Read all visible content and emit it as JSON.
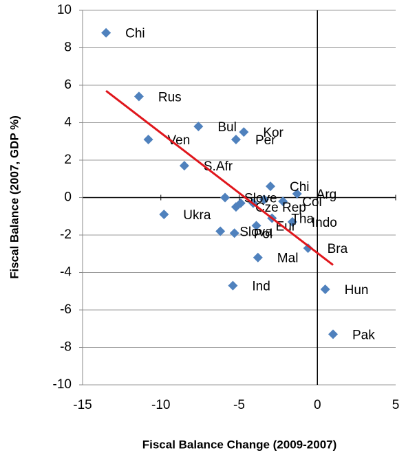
{
  "chart_data": {
    "type": "scatter",
    "x_label": "Fiscal Balance Change (2009-2007)",
    "y_label": "Fiscal Balance (2007, GDP %)",
    "color": "#4f81bd",
    "grid": true,
    "trend_color": "#e0161c",
    "xlim": [
      -15,
      5
    ],
    "xticks": [
      -15,
      -10,
      -5,
      0,
      5
    ],
    "ylim": [
      -10,
      10
    ],
    "yticks": [
      -10,
      -8,
      -6,
      -4,
      -2,
      0,
      2,
      4,
      6,
      8,
      10
    ],
    "labels": [
      "Chi",
      "Rus",
      "Ven",
      "Bul",
      "Kor",
      "Per",
      "S.Afr",
      "Ukra",
      "Ind",
      "Mal",
      "Slova",
      "Pol",
      "Hun",
      "Pak",
      "Bra",
      "Indo",
      "Slove",
      "Chi",
      "Arg",
      "Col",
      "Cze Rep",
      "Tha",
      "Eur",
      null,
      null,
      null
    ],
    "x": [
      -13.5,
      -11.4,
      -10.8,
      -7.6,
      -4.7,
      -5.2,
      -8.5,
      -9.8,
      -5.4,
      -3.8,
      -6.2,
      -5.3,
      0.5,
      1.0,
      -0.6,
      -1.6,
      -5.9,
      -3.0,
      -1.3,
      -2.2,
      -5.2,
      -2.9,
      -3.9,
      -4.9,
      -4.1,
      -3.4
    ],
    "y": [
      8.8,
      5.4,
      3.1,
      3.8,
      3.5,
      3.1,
      1.7,
      -0.9,
      -4.7,
      -3.2,
      -1.8,
      -1.9,
      -4.9,
      -7.3,
      -2.7,
      -1.3,
      0.0,
      0.6,
      0.2,
      -0.2,
      -0.5,
      -1.1,
      -1.5,
      -0.3,
      -0.3,
      -0.1
    ],
    "trend_x": [
      -13.5,
      1.0
    ],
    "trend_y": [
      5.7,
      -3.6
    ]
  }
}
